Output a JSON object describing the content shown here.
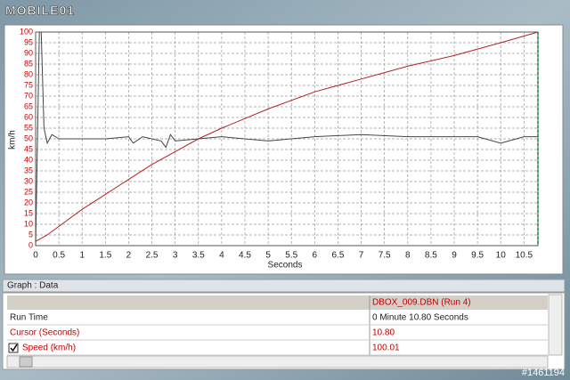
{
  "logo": "MOBILE01",
  "chart_data": {
    "type": "line",
    "xlabel": "Seconds",
    "ylabel": "km/h",
    "xlim": [
      0,
      10.8
    ],
    "ylim": [
      0,
      100
    ],
    "xticks": [
      0,
      0.5,
      1,
      1.5,
      2,
      2.5,
      3,
      3.5,
      4,
      4.5,
      5,
      5.5,
      6,
      6.5,
      7,
      7.5,
      8,
      8.5,
      9,
      9.5,
      10,
      10.5
    ],
    "yticks": [
      0,
      5,
      10,
      15,
      20,
      25,
      30,
      35,
      40,
      45,
      50,
      55,
      60,
      65,
      70,
      75,
      80,
      85,
      90,
      95,
      100
    ],
    "grid": true,
    "series": [
      {
        "color": "#b22222",
        "x": [
          0,
          0.25,
          0.5,
          1,
          1.5,
          2,
          2.5,
          3,
          3.5,
          4,
          5,
          6,
          7,
          7.5,
          8,
          9,
          10,
          10.8
        ],
        "values": [
          2,
          5,
          9,
          17,
          24,
          31,
          38,
          44,
          50,
          55,
          64,
          72,
          78,
          81,
          84,
          89,
          95,
          100
        ]
      },
      {
        "color": "#444444",
        "x": [
          0,
          0.08,
          0.12,
          0.18,
          0.25,
          0.35,
          0.5,
          1,
          1.5,
          2,
          2.1,
          2.3,
          2.7,
          2.8,
          2.9,
          3,
          4,
          5,
          6,
          7,
          8,
          9,
          9.5,
          10,
          10.5,
          10.8
        ],
        "values": [
          0,
          100,
          100,
          55,
          48,
          52,
          50,
          50,
          50,
          51,
          48,
          51,
          49,
          46,
          52,
          49,
          51,
          49,
          51,
          52,
          51,
          51,
          51,
          48,
          51,
          51
        ]
      }
    ]
  },
  "panel": {
    "title": "Graph : Data",
    "column": "DBOX_009.DBN (Run 4)",
    "rows": [
      {
        "label": "Run Time",
        "value": "0 Minute 10.80 Seconds"
      },
      {
        "label": "Cursor (Seconds)",
        "value": "10.80"
      },
      {
        "label": "Speed (km/h)",
        "value": "100.01"
      }
    ]
  },
  "watermark": "#1461194"
}
